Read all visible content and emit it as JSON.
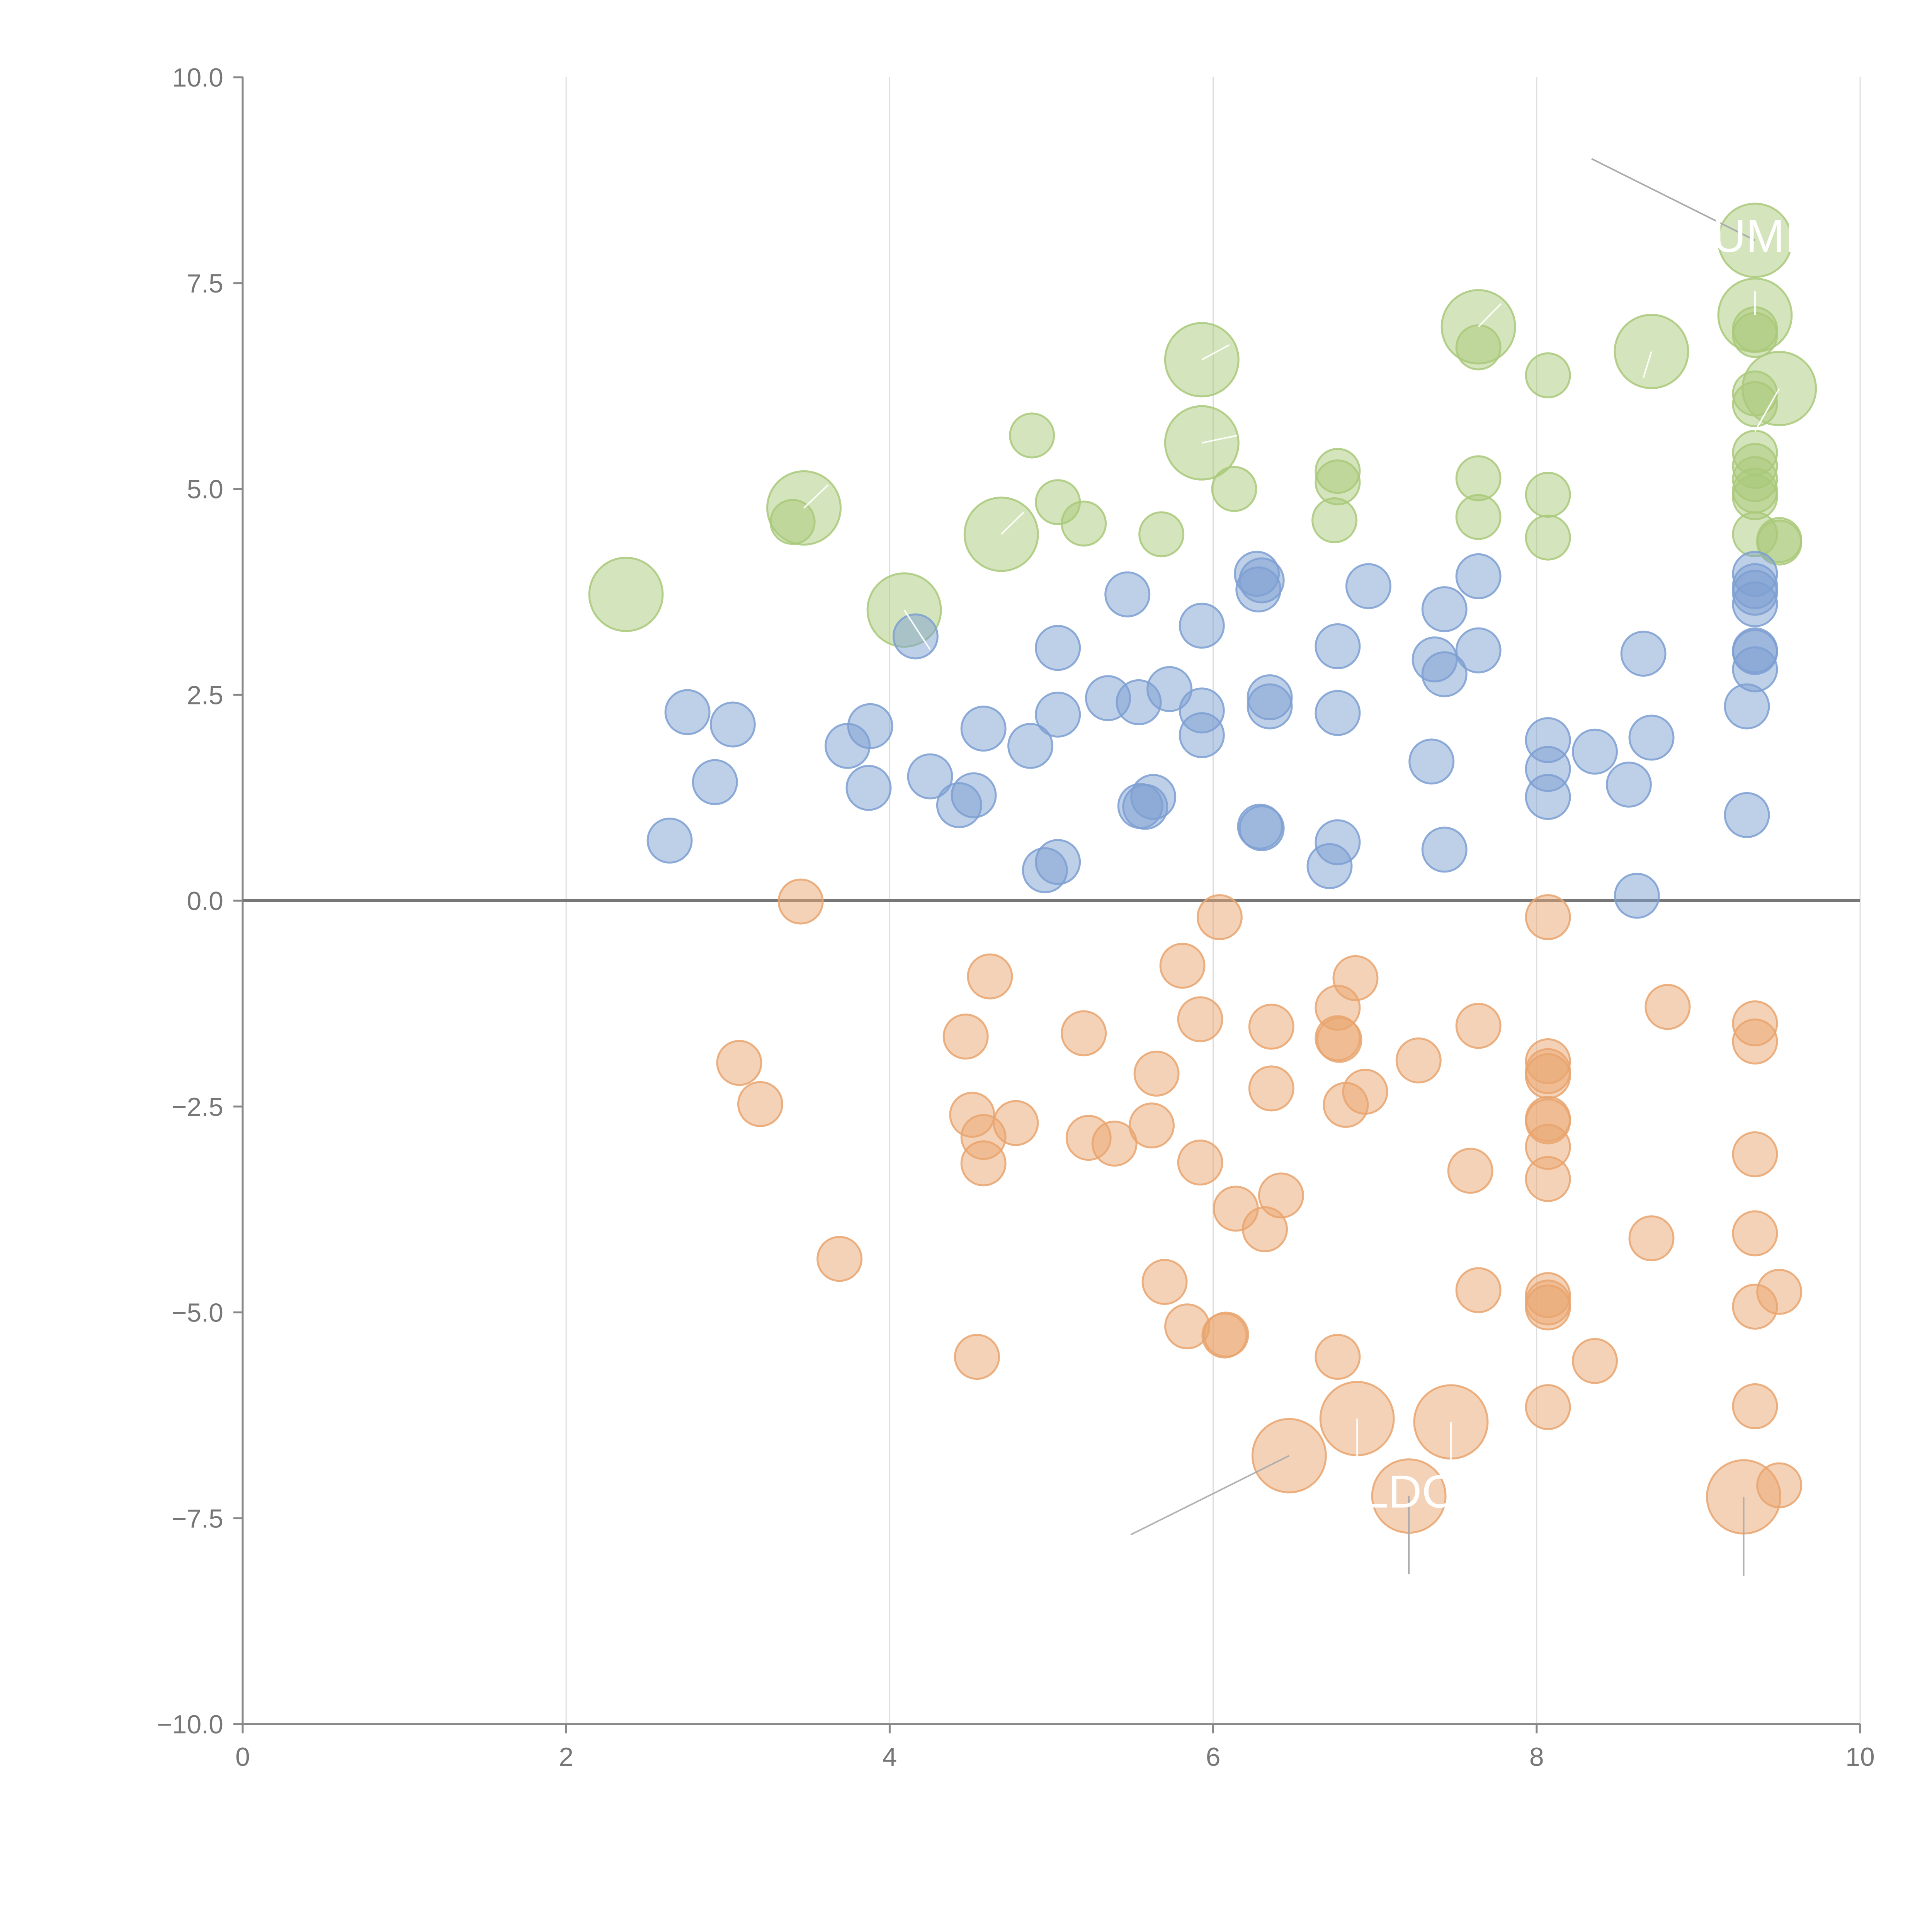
{
  "chart_data": {
    "type": "scatter",
    "subtype": "bubble",
    "title": "",
    "xlabel": "",
    "ylabel": "",
    "xlim": [
      0,
      10
    ],
    "ylim": [
      -10,
      10
    ],
    "x_ticks": [
      0,
      2,
      4,
      6,
      8,
      10
    ],
    "y_ticks": [
      -10.0,
      -7.5,
      -5.0,
      -2.5,
      0.0,
      2.5,
      5.0,
      7.5,
      10.0
    ],
    "x_tick_labels": [
      "0",
      "2",
      "4",
      "6",
      "8",
      "10"
    ],
    "y_tick_labels": [
      "−10.0",
      "−7.5",
      "−5.0",
      "−2.5",
      "0.0",
      "2.5",
      "5.0",
      "7.5",
      "10.0"
    ],
    "grid": {
      "vertical": true,
      "horizontal": false
    },
    "zero_line": true,
    "series": [
      {
        "name": "green",
        "color": "#a9c97a",
        "points": [
          {
            "x": 2.37,
            "y": 3.72,
            "size": 2
          },
          {
            "x": 3.4,
            "y": 4.6,
            "size": 1
          },
          {
            "x": 3.47,
            "y": 4.77,
            "size": 2
          },
          {
            "x": 4.09,
            "y": 3.53,
            "size": 2
          },
          {
            "x": 4.69,
            "y": 4.45,
            "size": 2
          },
          {
            "x": 4.88,
            "y": 5.65,
            "size": 1
          },
          {
            "x": 5.04,
            "y": 4.84,
            "size": 1
          },
          {
            "x": 5.2,
            "y": 4.58,
            "size": 1
          },
          {
            "x": 5.68,
            "y": 4.45,
            "size": 1
          },
          {
            "x": 5.93,
            "y": 6.57,
            "size": 2
          },
          {
            "x": 5.93,
            "y": 5.56,
            "size": 2
          },
          {
            "x": 6.13,
            "y": 5.0,
            "size": 1
          },
          {
            "x": 6.77,
            "y": 5.22,
            "size": 1
          },
          {
            "x": 6.77,
            "y": 5.08,
            "size": 1
          },
          {
            "x": 6.75,
            "y": 4.62,
            "size": 1
          },
          {
            "x": 7.64,
            "y": 6.97,
            "size": 2
          },
          {
            "x": 7.64,
            "y": 6.72,
            "size": 1
          },
          {
            "x": 7.64,
            "y": 5.13,
            "size": 1
          },
          {
            "x": 7.64,
            "y": 4.66,
            "size": 1
          },
          {
            "x": 8.07,
            "y": 6.38,
            "size": 1
          },
          {
            "x": 8.07,
            "y": 4.93,
            "size": 1
          },
          {
            "x": 8.07,
            "y": 4.41,
            "size": 1
          },
          {
            "x": 8.71,
            "y": 6.67,
            "size": 2
          },
          {
            "x": 9.35,
            "y": 8.02,
            "size": 2
          },
          {
            "x": 9.35,
            "y": 7.11,
            "size": 2
          },
          {
            "x": 9.35,
            "y": 6.94,
            "size": 1
          },
          {
            "x": 9.35,
            "y": 6.87,
            "size": 1
          },
          {
            "x": 9.5,
            "y": 6.22,
            "size": 2
          },
          {
            "x": 9.35,
            "y": 6.16,
            "size": 1
          },
          {
            "x": 9.35,
            "y": 6.03,
            "size": 1
          },
          {
            "x": 9.35,
            "y": 5.44,
            "size": 1
          },
          {
            "x": 9.35,
            "y": 5.28,
            "size": 1
          },
          {
            "x": 9.35,
            "y": 5.12,
            "size": 1
          },
          {
            "x": 9.35,
            "y": 4.98,
            "size": 1
          },
          {
            "x": 9.35,
            "y": 4.9,
            "size": 1
          },
          {
            "x": 9.35,
            "y": 4.45,
            "size": 1
          },
          {
            "x": 9.5,
            "y": 4.38,
            "size": 1
          },
          {
            "x": 9.5,
            "y": 4.35,
            "size": 1
          }
        ]
      },
      {
        "name": "blue",
        "color": "#7d9fd2",
        "points": [
          {
            "x": 2.64,
            "y": 0.73,
            "size": 1
          },
          {
            "x": 2.75,
            "y": 2.29,
            "size": 1
          },
          {
            "x": 2.92,
            "y": 1.44,
            "size": 1
          },
          {
            "x": 3.03,
            "y": 2.14,
            "size": 1
          },
          {
            "x": 3.74,
            "y": 1.88,
            "size": 1
          },
          {
            "x": 3.88,
            "y": 2.12,
            "size": 1
          },
          {
            "x": 3.87,
            "y": 1.37,
            "size": 1
          },
          {
            "x": 4.16,
            "y": 3.21,
            "size": 1
          },
          {
            "x": 4.25,
            "y": 1.51,
            "size": 1
          },
          {
            "x": 4.43,
            "y": 1.16,
            "size": 1
          },
          {
            "x": 4.52,
            "y": 1.28,
            "size": 1
          },
          {
            "x": 4.58,
            "y": 2.09,
            "size": 1
          },
          {
            "x": 4.87,
            "y": 1.88,
            "size": 1
          },
          {
            "x": 4.96,
            "y": 0.37,
            "size": 1
          },
          {
            "x": 5.04,
            "y": 0.47,
            "size": 1
          },
          {
            "x": 5.04,
            "y": 3.07,
            "size": 1
          },
          {
            "x": 5.04,
            "y": 2.26,
            "size": 1
          },
          {
            "x": 5.35,
            "y": 2.46,
            "size": 1
          },
          {
            "x": 5.47,
            "y": 3.72,
            "size": 1
          },
          {
            "x": 5.54,
            "y": 2.41,
            "size": 1
          },
          {
            "x": 5.55,
            "y": 1.15,
            "size": 1
          },
          {
            "x": 5.58,
            "y": 1.14,
            "size": 1
          },
          {
            "x": 5.63,
            "y": 1.26,
            "size": 1
          },
          {
            "x": 5.73,
            "y": 2.57,
            "size": 1
          },
          {
            "x": 5.93,
            "y": 3.34,
            "size": 1
          },
          {
            "x": 5.93,
            "y": 2.31,
            "size": 1
          },
          {
            "x": 5.93,
            "y": 2.01,
            "size": 1
          },
          {
            "x": 6.27,
            "y": 3.97,
            "size": 1
          },
          {
            "x": 6.28,
            "y": 3.78,
            "size": 1
          },
          {
            "x": 6.3,
            "y": 3.89,
            "size": 1
          },
          {
            "x": 6.29,
            "y": 0.9,
            "size": 1
          },
          {
            "x": 6.3,
            "y": 0.88,
            "size": 1
          },
          {
            "x": 6.35,
            "y": 2.47,
            "size": 1
          },
          {
            "x": 6.35,
            "y": 2.36,
            "size": 1
          },
          {
            "x": 6.72,
            "y": 0.42,
            "size": 1
          },
          {
            "x": 6.77,
            "y": 3.09,
            "size": 1
          },
          {
            "x": 6.77,
            "y": 2.28,
            "size": 1
          },
          {
            "x": 6.77,
            "y": 0.71,
            "size": 1
          },
          {
            "x": 6.96,
            "y": 3.82,
            "size": 1
          },
          {
            "x": 7.35,
            "y": 1.69,
            "size": 1
          },
          {
            "x": 7.37,
            "y": 2.93,
            "size": 1
          },
          {
            "x": 7.43,
            "y": 3.54,
            "size": 1
          },
          {
            "x": 7.43,
            "y": 2.75,
            "size": 1
          },
          {
            "x": 7.43,
            "y": 0.62,
            "size": 1
          },
          {
            "x": 7.64,
            "y": 3.94,
            "size": 1
          },
          {
            "x": 7.64,
            "y": 3.04,
            "size": 1
          },
          {
            "x": 8.07,
            "y": 1.95,
            "size": 1
          },
          {
            "x": 8.07,
            "y": 1.6,
            "size": 1
          },
          {
            "x": 8.07,
            "y": 1.26,
            "size": 1
          },
          {
            "x": 8.36,
            "y": 1.81,
            "size": 1
          },
          {
            "x": 8.57,
            "y": 1.41,
            "size": 1
          },
          {
            "x": 8.62,
            "y": 0.06,
            "size": 1
          },
          {
            "x": 8.66,
            "y": 3.0,
            "size": 1
          },
          {
            "x": 8.71,
            "y": 1.98,
            "size": 1
          },
          {
            "x": 9.3,
            "y": 2.36,
            "size": 1
          },
          {
            "x": 9.3,
            "y": 1.04,
            "size": 1
          },
          {
            "x": 9.35,
            "y": 3.97,
            "size": 1
          },
          {
            "x": 9.35,
            "y": 3.82,
            "size": 1
          },
          {
            "x": 9.35,
            "y": 3.74,
            "size": 1
          },
          {
            "x": 9.35,
            "y": 3.6,
            "size": 1
          },
          {
            "x": 9.35,
            "y": 3.04,
            "size": 1
          },
          {
            "x": 9.35,
            "y": 3.02,
            "size": 1
          },
          {
            "x": 9.35,
            "y": 2.81,
            "size": 1
          }
        ]
      },
      {
        "name": "orange",
        "color": "#e9a56f",
        "points": [
          {
            "x": 3.45,
            "y": -0.01,
            "size": 1
          },
          {
            "x": 3.07,
            "y": -1.97,
            "size": 1
          },
          {
            "x": 3.2,
            "y": -2.47,
            "size": 1
          },
          {
            "x": 3.69,
            "y": -4.35,
            "size": 1
          },
          {
            "x": 4.47,
            "y": -1.65,
            "size": 1
          },
          {
            "x": 4.51,
            "y": -2.6,
            "size": 1
          },
          {
            "x": 4.54,
            "y": -5.54,
            "size": 1
          },
          {
            "x": 4.58,
            "y": -2.87,
            "size": 1
          },
          {
            "x": 4.58,
            "y": -3.19,
            "size": 1
          },
          {
            "x": 4.62,
            "y": -0.92,
            "size": 1
          },
          {
            "x": 4.78,
            "y": -2.7,
            "size": 1
          },
          {
            "x": 5.2,
            "y": -1.61,
            "size": 1
          },
          {
            "x": 5.23,
            "y": -2.88,
            "size": 1
          },
          {
            "x": 5.39,
            "y": -2.95,
            "size": 1
          },
          {
            "x": 5.62,
            "y": -2.73,
            "size": 1
          },
          {
            "x": 5.65,
            "y": -2.1,
            "size": 1
          },
          {
            "x": 5.7,
            "y": -4.63,
            "size": 1
          },
          {
            "x": 5.81,
            "y": -0.79,
            "size": 1
          },
          {
            "x": 5.84,
            "y": -5.17,
            "size": 1
          },
          {
            "x": 5.92,
            "y": -1.44,
            "size": 1
          },
          {
            "x": 5.92,
            "y": -3.18,
            "size": 1
          },
          {
            "x": 6.04,
            "y": -0.2,
            "size": 1
          },
          {
            "x": 6.07,
            "y": -5.28,
            "size": 1
          },
          {
            "x": 6.08,
            "y": -5.27,
            "size": 1
          },
          {
            "x": 6.14,
            "y": -3.74,
            "size": 1
          },
          {
            "x": 6.32,
            "y": -3.99,
            "size": 1
          },
          {
            "x": 6.36,
            "y": -1.53,
            "size": 1
          },
          {
            "x": 6.36,
            "y": -2.28,
            "size": 1
          },
          {
            "x": 6.42,
            "y": -3.58,
            "size": 1
          },
          {
            "x": 6.47,
            "y": -6.74,
            "size": 2
          },
          {
            "x": 6.77,
            "y": -1.3,
            "size": 1
          },
          {
            "x": 6.77,
            "y": -1.67,
            "size": 1
          },
          {
            "x": 6.78,
            "y": -1.69,
            "size": 1
          },
          {
            "x": 6.77,
            "y": -5.54,
            "size": 1
          },
          {
            "x": 6.82,
            "y": -2.48,
            "size": 1
          },
          {
            "x": 6.88,
            "y": -0.94,
            "size": 1
          },
          {
            "x": 6.89,
            "y": -6.29,
            "size": 2
          },
          {
            "x": 6.94,
            "y": -2.32,
            "size": 1
          },
          {
            "x": 7.21,
            "y": -7.23,
            "size": 2
          },
          {
            "x": 7.27,
            "y": -1.94,
            "size": 1
          },
          {
            "x": 7.47,
            "y": -6.33,
            "size": 2
          },
          {
            "x": 7.59,
            "y": -3.28,
            "size": 1
          },
          {
            "x": 7.64,
            "y": -1.52,
            "size": 1
          },
          {
            "x": 7.64,
            "y": -4.73,
            "size": 1
          },
          {
            "x": 8.07,
            "y": -0.2,
            "size": 1
          },
          {
            "x": 8.07,
            "y": -1.95,
            "size": 1
          },
          {
            "x": 8.07,
            "y": -2.07,
            "size": 1
          },
          {
            "x": 8.07,
            "y": -2.13,
            "size": 1
          },
          {
            "x": 8.07,
            "y": -2.65,
            "size": 1
          },
          {
            "x": 8.07,
            "y": -2.68,
            "size": 1
          },
          {
            "x": 8.07,
            "y": -2.99,
            "size": 1
          },
          {
            "x": 8.07,
            "y": -3.38,
            "size": 1
          },
          {
            "x": 8.07,
            "y": -4.79,
            "size": 1
          },
          {
            "x": 8.07,
            "y": -4.88,
            "size": 1
          },
          {
            "x": 8.07,
            "y": -4.94,
            "size": 1
          },
          {
            "x": 8.07,
            "y": -6.15,
            "size": 1
          },
          {
            "x": 8.36,
            "y": -5.59,
            "size": 1
          },
          {
            "x": 8.71,
            "y": -4.1,
            "size": 1
          },
          {
            "x": 8.81,
            "y": -1.29,
            "size": 1
          },
          {
            "x": 9.28,
            "y": -7.24,
            "size": 2
          },
          {
            "x": 9.35,
            "y": -1.49,
            "size": 1
          },
          {
            "x": 9.35,
            "y": -1.71,
            "size": 1
          },
          {
            "x": 9.35,
            "y": -3.08,
            "size": 1
          },
          {
            "x": 9.35,
            "y": -4.04,
            "size": 1
          },
          {
            "x": 9.35,
            "y": -4.93,
            "size": 1
          },
          {
            "x": 9.35,
            "y": -6.14,
            "size": 1
          },
          {
            "x": 9.5,
            "y": -4.75,
            "size": 1
          },
          {
            "x": 9.5,
            "y": -7.1,
            "size": 1
          }
        ]
      }
    ],
    "annotations": [
      {
        "text": "UMI",
        "anchor": [
          9.35,
          8.02
        ],
        "text_at": [
          8.34,
          9.01
        ]
      },
      {
        "text": "LDC",
        "anchor": [
          7.21,
          -7.23
        ],
        "text_at": [
          7.21,
          -8.18
        ]
      }
    ],
    "label_lines": [
      {
        "from": [
          5.93,
          6.57
        ],
        "to": [
          6.1,
          6.75
        ]
      },
      {
        "from": [
          5.93,
          5.56
        ],
        "to": [
          6.15,
          5.65
        ]
      },
      {
        "from": [
          7.64,
          6.97
        ],
        "to": [
          7.78,
          7.25
        ]
      },
      {
        "from": [
          8.71,
          6.67
        ],
        "to": [
          8.66,
          6.35
        ]
      },
      {
        "from": [
          9.35,
          7.11
        ],
        "to": [
          9.35,
          7.4
        ]
      },
      {
        "from": [
          9.5,
          6.22
        ],
        "to": [
          9.35,
          5.7
        ]
      },
      {
        "from": [
          3.47,
          4.77
        ],
        "to": [
          3.62,
          5.05
        ]
      },
      {
        "from": [
          4.69,
          4.45
        ],
        "to": [
          4.83,
          4.72
        ]
      },
      {
        "from": [
          4.09,
          3.53
        ],
        "to": [
          4.25,
          3.05
        ]
      },
      {
        "from": [
          6.47,
          -6.74
        ],
        "to": [
          5.49,
          -7.7
        ]
      },
      {
        "from": [
          6.89,
          -6.29
        ],
        "to": [
          6.89,
          -7.2
        ]
      },
      {
        "from": [
          7.47,
          -6.33
        ],
        "to": [
          7.47,
          -7.2
        ]
      },
      {
        "from": [
          9.28,
          -7.24
        ],
        "to": [
          9.28,
          -8.2
        ]
      }
    ]
  }
}
